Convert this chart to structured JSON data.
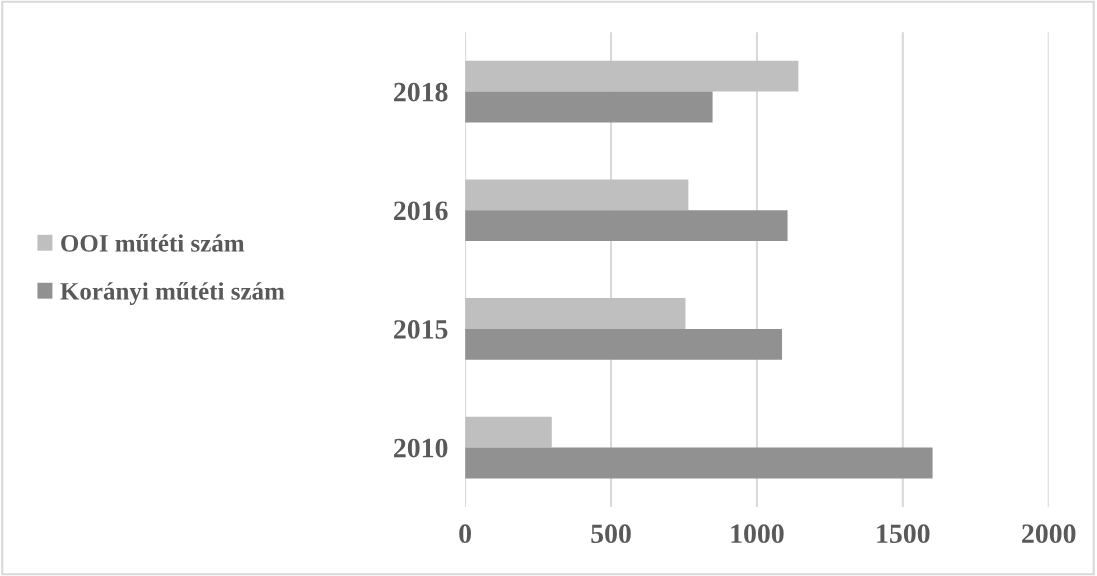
{
  "chart_data": {
    "type": "bar",
    "orientation": "horizontal",
    "categories": [
      "2018",
      "2016",
      "2015",
      "2010"
    ],
    "series": [
      {
        "name": "OOI műtéti szám",
        "color": "#bfbfbf",
        "values": [
          1142,
          765,
          755,
          297
        ]
      },
      {
        "name": "Korányi műtéti szám",
        "color": "#919191",
        "values": [
          848,
          1105,
          1086,
          1602
        ]
      }
    ],
    "xlim": [
      0,
      2000
    ],
    "xticks": [
      0,
      500,
      1000,
      1500,
      2000
    ],
    "grid": "x",
    "legend": "left"
  }
}
